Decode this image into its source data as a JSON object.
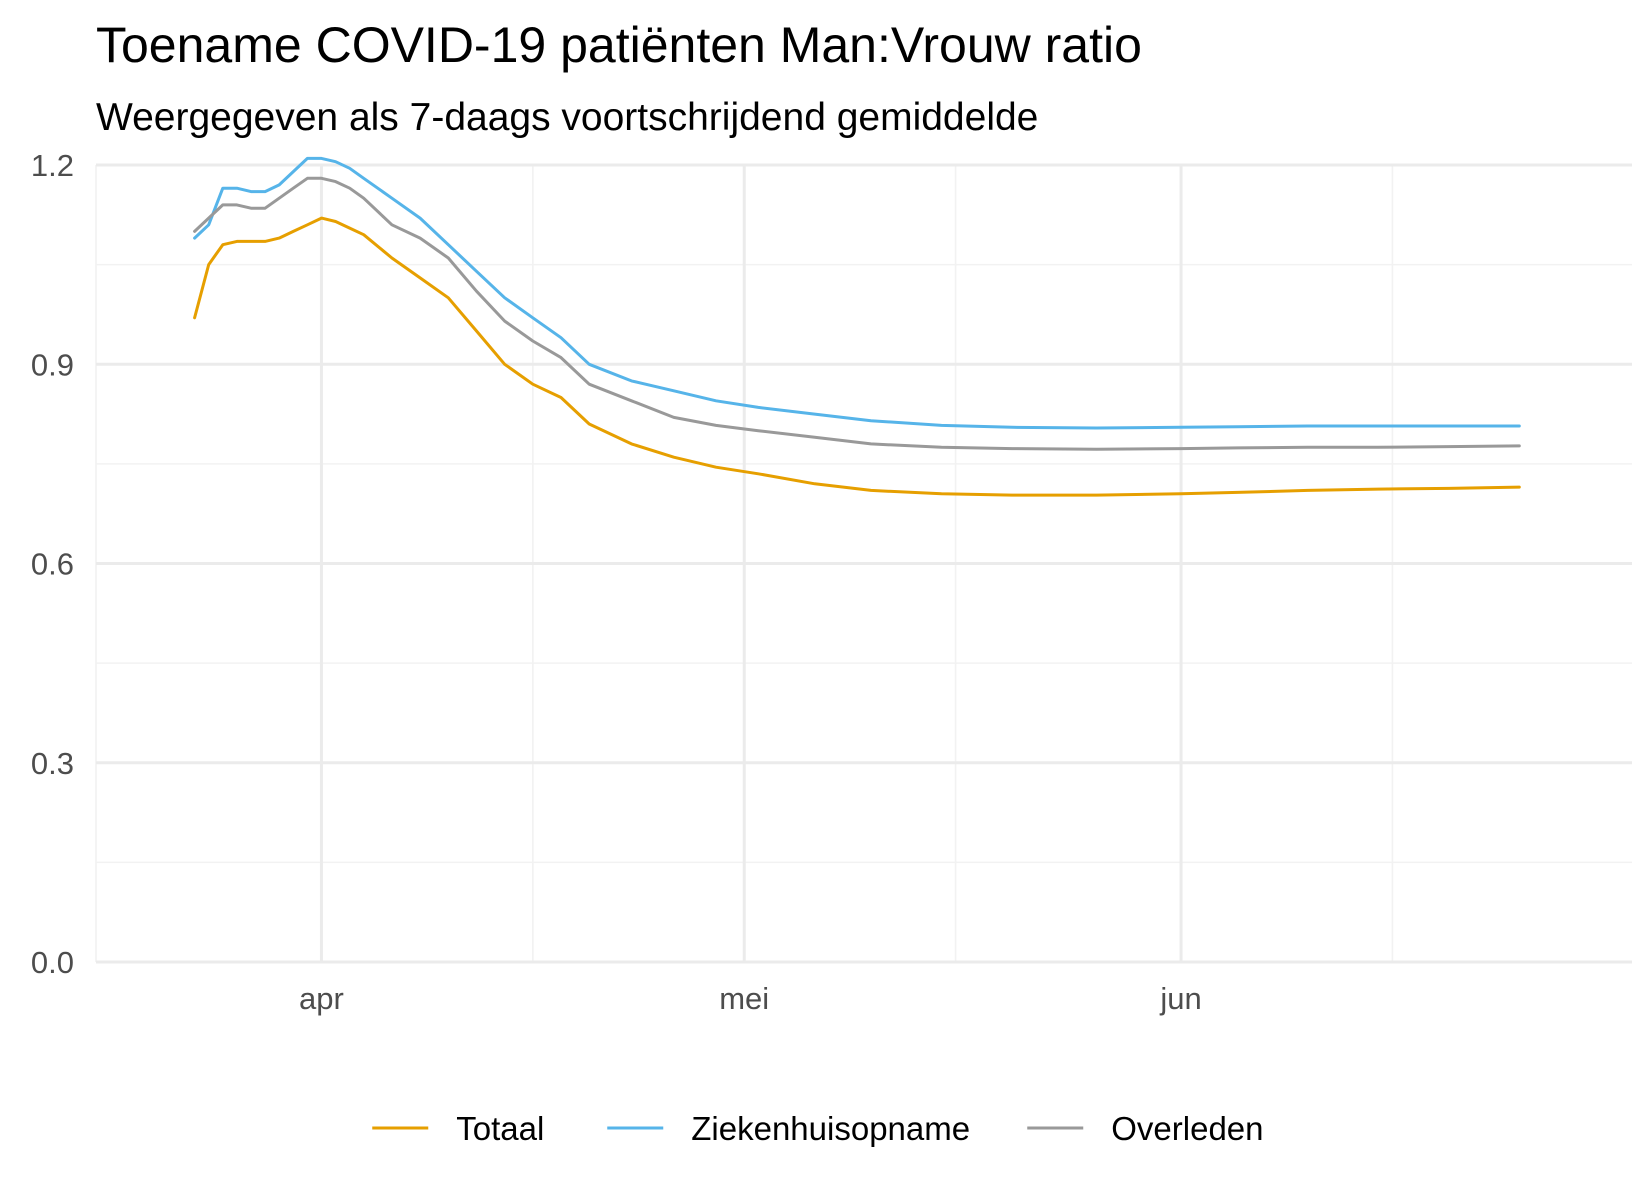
{
  "chart_data": {
    "type": "line",
    "title": "Toename COVID-19 patiënten Man:Vrouw ratio",
    "subtitle": "Weergegeven als 7-daags voortschrijdend gemiddelde",
    "xlabel": "",
    "ylabel": "",
    "xlim": [
      "2020-03-16",
      "2020-07-03"
    ],
    "ylim": [
      0,
      1.2
    ],
    "y_ticks": [
      0.0,
      0.3,
      0.6,
      0.9,
      1.2
    ],
    "y_tick_labels": [
      "0.0",
      "0.3",
      "0.6",
      "0.9",
      "1.2"
    ],
    "y_minor_ticks": [
      0.15,
      0.45,
      0.75,
      1.05
    ],
    "x_ticks": [
      "2020-04-01",
      "2020-05-01",
      "2020-06-01"
    ],
    "x_tick_labels": [
      "apr",
      "mei",
      "jun"
    ],
    "x_minor_ticks": [
      "2020-03-16",
      "2020-04-16",
      "2020-05-16",
      "2020-06-16"
    ],
    "grid": true,
    "legend_position": "bottom",
    "series": [
      {
        "name": "Totaal",
        "color": "#E69F00",
        "x": [
          "2020-03-23",
          "2020-03-24",
          "2020-03-25",
          "2020-03-26",
          "2020-03-27",
          "2020-03-28",
          "2020-03-29",
          "2020-03-30",
          "2020-03-31",
          "2020-04-01",
          "2020-04-02",
          "2020-04-03",
          "2020-04-04",
          "2020-04-06",
          "2020-04-08",
          "2020-04-10",
          "2020-04-12",
          "2020-04-14",
          "2020-04-16",
          "2020-04-18",
          "2020-04-20",
          "2020-04-23",
          "2020-04-26",
          "2020-04-29",
          "2020-05-02",
          "2020-05-06",
          "2020-05-10",
          "2020-05-15",
          "2020-05-20",
          "2020-05-26",
          "2020-06-01",
          "2020-06-05",
          "2020-06-10",
          "2020-06-15",
          "2020-06-20",
          "2020-06-25"
        ],
        "y": [
          0.97,
          1.05,
          1.08,
          1.085,
          1.085,
          1.085,
          1.09,
          1.1,
          1.11,
          1.12,
          1.115,
          1.105,
          1.095,
          1.06,
          1.03,
          1.0,
          0.95,
          0.9,
          0.87,
          0.85,
          0.81,
          0.78,
          0.76,
          0.745,
          0.735,
          0.72,
          0.71,
          0.705,
          0.703,
          0.703,
          0.705,
          0.707,
          0.71,
          0.712,
          0.713,
          0.715
        ]
      },
      {
        "name": "Ziekenhuisopname",
        "color": "#56B4E9",
        "x": [
          "2020-03-23",
          "2020-03-24",
          "2020-03-25",
          "2020-03-26",
          "2020-03-27",
          "2020-03-28",
          "2020-03-29",
          "2020-03-30",
          "2020-03-31",
          "2020-04-01",
          "2020-04-02",
          "2020-04-03",
          "2020-04-04",
          "2020-04-06",
          "2020-04-08",
          "2020-04-10",
          "2020-04-12",
          "2020-04-14",
          "2020-04-16",
          "2020-04-18",
          "2020-04-20",
          "2020-04-23",
          "2020-04-26",
          "2020-04-29",
          "2020-05-02",
          "2020-05-06",
          "2020-05-10",
          "2020-05-15",
          "2020-05-20",
          "2020-05-26",
          "2020-06-01",
          "2020-06-05",
          "2020-06-10",
          "2020-06-15",
          "2020-06-20",
          "2020-06-25"
        ],
        "y": [
          1.09,
          1.11,
          1.165,
          1.165,
          1.16,
          1.16,
          1.17,
          1.19,
          1.21,
          1.21,
          1.205,
          1.195,
          1.18,
          1.15,
          1.12,
          1.08,
          1.04,
          1.0,
          0.97,
          0.94,
          0.9,
          0.875,
          0.86,
          0.845,
          0.835,
          0.825,
          0.815,
          0.808,
          0.805,
          0.804,
          0.805,
          0.806,
          0.807,
          0.807,
          0.807,
          0.807
        ]
      },
      {
        "name": "Overleden",
        "color": "#999999",
        "x": [
          "2020-03-23",
          "2020-03-24",
          "2020-03-25",
          "2020-03-26",
          "2020-03-27",
          "2020-03-28",
          "2020-03-29",
          "2020-03-30",
          "2020-03-31",
          "2020-04-01",
          "2020-04-02",
          "2020-04-03",
          "2020-04-04",
          "2020-04-06",
          "2020-04-08",
          "2020-04-10",
          "2020-04-12",
          "2020-04-14",
          "2020-04-16",
          "2020-04-18",
          "2020-04-20",
          "2020-04-23",
          "2020-04-26",
          "2020-04-29",
          "2020-05-02",
          "2020-05-06",
          "2020-05-10",
          "2020-05-15",
          "2020-05-20",
          "2020-05-26",
          "2020-06-01",
          "2020-06-05",
          "2020-06-10",
          "2020-06-15",
          "2020-06-20",
          "2020-06-25"
        ],
        "y": [
          1.1,
          1.12,
          1.14,
          1.14,
          1.135,
          1.135,
          1.15,
          1.165,
          1.18,
          1.18,
          1.175,
          1.165,
          1.15,
          1.11,
          1.09,
          1.06,
          1.01,
          0.965,
          0.935,
          0.91,
          0.87,
          0.845,
          0.82,
          0.808,
          0.8,
          0.79,
          0.78,
          0.775,
          0.773,
          0.772,
          0.773,
          0.774,
          0.775,
          0.775,
          0.776,
          0.777
        ]
      }
    ]
  }
}
